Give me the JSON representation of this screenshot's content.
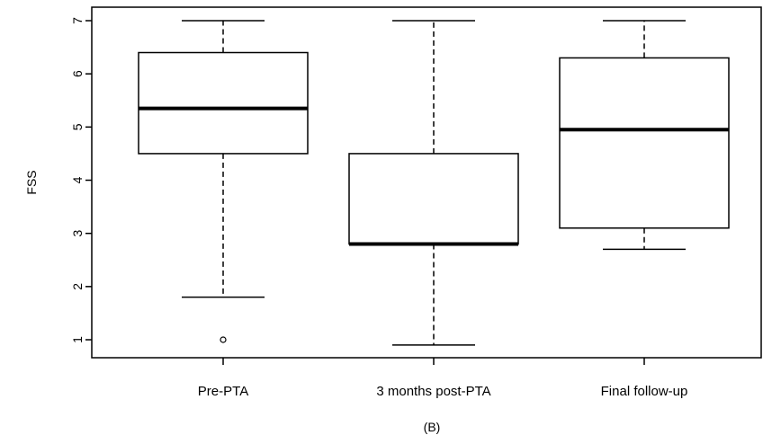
{
  "chart_data": {
    "type": "boxplot",
    "title": "",
    "xlabel": "(B)",
    "ylabel": "FSS",
    "ylim": [
      0.65,
      7.25
    ],
    "yticks": [
      1,
      2,
      3,
      4,
      5,
      6,
      7
    ],
    "categories": [
      "Pre-PTA",
      "3 months post-PTA",
      "Final follow-up"
    ],
    "boxes": [
      {
        "name": "Pre-PTA",
        "whisker_low": 1.8,
        "q1": 4.5,
        "median": 5.35,
        "q3": 6.4,
        "whisker_high": 7.0,
        "outliers": [
          1.0
        ]
      },
      {
        "name": "3 months post-PTA",
        "whisker_low": 0.9,
        "q1": 2.8,
        "median": 2.8,
        "q3": 4.5,
        "whisker_high": 7.0,
        "outliers": []
      },
      {
        "name": "Final follow-up",
        "whisker_low": 2.7,
        "q1": 3.1,
        "median": 4.95,
        "q3": 6.3,
        "whisker_high": 7.0,
        "outliers": []
      }
    ],
    "grid": false,
    "legend": "none"
  }
}
